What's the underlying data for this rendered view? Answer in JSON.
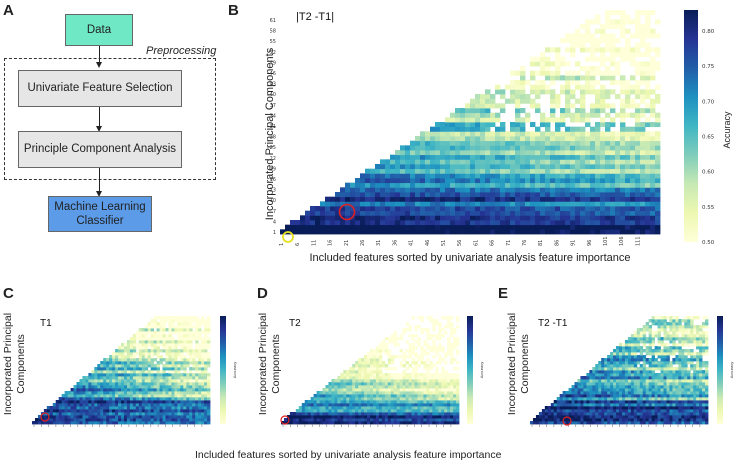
{
  "panels": {
    "a": "A",
    "b": "B",
    "c": "C",
    "d": "D",
    "e": "E"
  },
  "flowchart": {
    "data_label": "Data",
    "preprocessing_label": "Preprocessing",
    "step1_label": "Univariate Feature Selection",
    "step2_label": "Principle Component Analysis",
    "step3_label": "Machine Learning Classifier",
    "colors": {
      "data_fill": "#6ee8c5",
      "step_fill": "#e6e6e6",
      "classifier_fill": "#5c9be8"
    }
  },
  "chart_data": [
    {
      "type": "heatmap",
      "panel": "B",
      "title": "|T2 -T1|",
      "xlabel": "Included features sorted by univariate analysis feature importance",
      "ylabel": "Incorporated Principal Components",
      "x_ticks": [
        "1",
        "6",
        "11",
        "16",
        "21",
        "26",
        "31",
        "36",
        "41",
        "46",
        "51",
        "56",
        "61",
        "66",
        "71",
        "76",
        "81",
        "86",
        "91",
        "96",
        "101",
        "106",
        "111"
      ],
      "y_ticks": [
        "1",
        "4",
        "7",
        "10",
        "13",
        "16",
        "19",
        "22",
        "25",
        "28",
        "31",
        "34",
        "37",
        "40",
        "43",
        "46",
        "49",
        "52",
        "55",
        "58",
        "61"
      ],
      "colorbar": {
        "label": "Accuracy",
        "min": 0.5,
        "max": 0.83,
        "ticks": [
          "0.50",
          "0.55",
          "0.60",
          "0.65",
          "0.70",
          "0.75",
          "0.80"
        ]
      },
      "colormap": "YlGnBu",
      "markers": [
        {
          "color": "#e02020",
          "x": 21,
          "y": 9
        },
        {
          "color": "#e8e020",
          "x": 1,
          "y": 1
        }
      ]
    },
    {
      "type": "heatmap",
      "panel": "C",
      "title": "T1",
      "ylabel": "Incorporated Principal Components",
      "colorbar": {
        "label": "Accuracy"
      },
      "colormap": "YlGnBu",
      "markers": [
        {
          "color": "#e02020",
          "x": 11,
          "y": 6
        }
      ]
    },
    {
      "type": "heatmap",
      "panel": "D",
      "title": "T2",
      "ylabel": "Incorporated Principal Components",
      "colorbar": {
        "label": "Accuracy"
      },
      "colormap": "YlGnBu",
      "markers": [
        {
          "color": "#e02020",
          "x": 1,
          "y": 1
        }
      ]
    },
    {
      "type": "heatmap",
      "panel": "E",
      "title": "T2 -T1",
      "ylabel": "Incorporated Principal Components",
      "colorbar": {
        "label": "Accuracy"
      },
      "colormap": "YlGnBu",
      "markers": [
        {
          "color": "#e02020",
          "x": 41,
          "y": 3
        }
      ]
    }
  ],
  "bottom_caption": "Included features sorted by univariate analysis feature importance"
}
